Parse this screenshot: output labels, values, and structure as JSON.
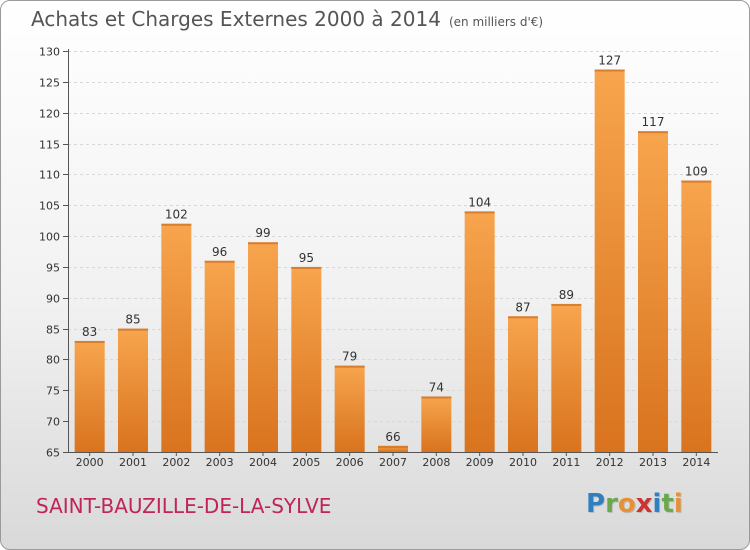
{
  "title": "Achats et Charges Externes 2000 à 2014",
  "subtitle": "(en milliers d'€)",
  "commune": "SAINT-BAUZILLE-DE-LA-SYLVE",
  "logo": {
    "text": "Proxiti",
    "letters": [
      {
        "ch": "P",
        "color": "#2f7fc1"
      },
      {
        "ch": "r",
        "color": "#6aa84f"
      },
      {
        "ch": "o",
        "color": "#e69138"
      },
      {
        "ch": "x",
        "color": "#cc3333"
      },
      {
        "ch": "i",
        "color": "#2f7fc1"
      },
      {
        "ch": "t",
        "color": "#6aa84f"
      },
      {
        "ch": "i",
        "color": "#e69138"
      }
    ]
  },
  "colors": {
    "bar_light": "#f7a54e",
    "bar_dark": "#d9731e",
    "grid": "#d8d8d8"
  },
  "chart_data": {
    "type": "bar",
    "categories": [
      "2000",
      "2001",
      "2002",
      "2003",
      "2004",
      "2005",
      "2006",
      "2007",
      "2008",
      "2009",
      "2010",
      "2011",
      "2012",
      "2013",
      "2014"
    ],
    "values": [
      83,
      85,
      102,
      96,
      99,
      95,
      79,
      66,
      74,
      104,
      87,
      89,
      127,
      117,
      109
    ],
    "ylim": [
      65,
      130
    ],
    "yticks": [
      65,
      70,
      75,
      80,
      85,
      90,
      95,
      100,
      105,
      110,
      115,
      120,
      125,
      130
    ],
    "grid": "dashed horizontal",
    "xlabel": "",
    "ylabel": ""
  }
}
